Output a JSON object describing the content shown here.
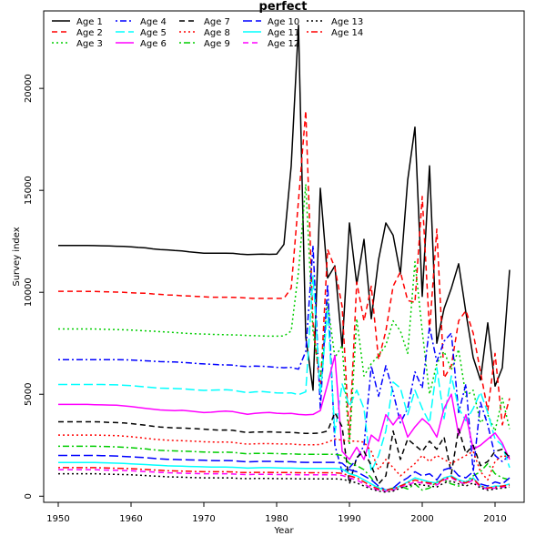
{
  "chart_data": {
    "type": "line",
    "title": "perfect",
    "xlabel": "Year",
    "ylabel": "Survey index",
    "xlim": [
      1948,
      2014
    ],
    "ylim": [
      -300,
      23800
    ],
    "xticks": [
      1950,
      1960,
      1970,
      1980,
      1990,
      2000,
      2010
    ],
    "yticks": [
      0,
      5000,
      10000,
      15000,
      20000
    ],
    "grid": false,
    "legend_position": "top-left",
    "years": [
      1950,
      1951,
      1952,
      1953,
      1954,
      1955,
      1956,
      1957,
      1958,
      1959,
      1960,
      1961,
      1962,
      1963,
      1964,
      1965,
      1966,
      1967,
      1968,
      1969,
      1970,
      1971,
      1972,
      1973,
      1974,
      1975,
      1976,
      1977,
      1978,
      1979,
      1980,
      1981,
      1982,
      1983,
      1984,
      1985,
      1986,
      1987,
      1988,
      1989,
      1990,
      1991,
      1992,
      1993,
      1994,
      1995,
      1996,
      1997,
      1998,
      1999,
      2000,
      2001,
      2002,
      2003,
      2004,
      2005,
      2006,
      2007,
      2008,
      2009,
      2010,
      2011,
      2012
    ],
    "series": [
      {
        "name": "Age 1",
        "color": "#000000",
        "dash": "solid",
        "values": [
          12300,
          12300,
          12300,
          12300,
          12300,
          12290,
          12280,
          12270,
          12260,
          12250,
          12230,
          12200,
          12180,
          12130,
          12100,
          12080,
          12050,
          12030,
          11980,
          11950,
          11920,
          11920,
          11920,
          11920,
          11910,
          11870,
          11850,
          11860,
          11870,
          11860,
          11870,
          12350,
          16200,
          23100,
          7800,
          5200,
          15100,
          10700,
          11300,
          7300,
          13400,
          10400,
          12600,
          8700,
          11600,
          13400,
          12800,
          10900,
          15500,
          18100,
          9800,
          16200,
          7500,
          9200,
          10200,
          11400,
          9000,
          6800,
          5700,
          8500,
          5400,
          6300,
          11100
        ]
      },
      {
        "name": "Age 2",
        "color": "#ff0000",
        "dash": "dashed",
        "values": [
          10050,
          10050,
          10050,
          10050,
          10040,
          10040,
          10030,
          10020,
          10010,
          10000,
          9980,
          9960,
          9950,
          9920,
          9900,
          9870,
          9860,
          9830,
          9820,
          9800,
          9780,
          9760,
          9760,
          9760,
          9750,
          9740,
          9720,
          9700,
          9700,
          9700,
          9700,
          9700,
          10200,
          14500,
          18900,
          8500,
          5200,
          12100,
          11200,
          9300,
          2800,
          10500,
          8600,
          10300,
          6700,
          8100,
          10300,
          11000,
          9600,
          9500,
          14700,
          8100,
          13100,
          5800,
          6400,
          8600,
          9100,
          8000,
          6100,
          4200,
          7000,
          3500,
          4800
        ]
      },
      {
        "name": "Age 3",
        "color": "#00cd00",
        "dash": "dotted",
        "values": [
          8200,
          8200,
          8200,
          8200,
          8200,
          8200,
          8190,
          8180,
          8170,
          8160,
          8150,
          8130,
          8110,
          8090,
          8070,
          8050,
          8030,
          8000,
          7980,
          7960,
          7950,
          7940,
          7930,
          7920,
          7910,
          7900,
          7880,
          7870,
          7860,
          7850,
          7850,
          7860,
          8100,
          11000,
          15300,
          8000,
          5800,
          9500,
          6800,
          7400,
          2500,
          8700,
          5900,
          6500,
          6900,
          7400,
          8600,
          8100,
          7000,
          11500,
          8100,
          5000,
          6500,
          7100,
          6200,
          7200,
          4900,
          5200,
          3600,
          4000,
          3200,
          4800,
          3300
        ]
      },
      {
        "name": "Age 4",
        "color": "#0000ff",
        "dash": "dotdash",
        "values": [
          6700,
          6700,
          6700,
          6700,
          6700,
          6700,
          6700,
          6700,
          6700,
          6690,
          6680,
          6660,
          6640,
          6620,
          6600,
          6590,
          6580,
          6560,
          6540,
          6510,
          6490,
          6470,
          6450,
          6440,
          6430,
          6380,
          6360,
          6380,
          6370,
          6350,
          6320,
          6300,
          6320,
          6230,
          7100,
          12300,
          4300,
          10400,
          2500,
          1200,
          1400,
          1800,
          2500,
          6400,
          4900,
          6400,
          5100,
          3600,
          4300,
          6100,
          5300,
          8300,
          6600,
          7600,
          8000,
          4100,
          5500,
          1200,
          4600,
          3500,
          2000,
          1700,
          2000
        ]
      },
      {
        "name": "Age 5",
        "color": "#00ffff",
        "dash": "longdash",
        "values": [
          5480,
          5480,
          5480,
          5480,
          5480,
          5480,
          5480,
          5470,
          5460,
          5440,
          5420,
          5390,
          5360,
          5330,
          5300,
          5290,
          5280,
          5270,
          5240,
          5210,
          5190,
          5200,
          5210,
          5220,
          5200,
          5130,
          5080,
          5120,
          5130,
          5100,
          5070,
          5060,
          5070,
          4980,
          5120,
          10800,
          5000,
          9100,
          3100,
          5500,
          4400,
          5200,
          4300,
          1200,
          2000,
          3200,
          5600,
          5300,
          4000,
          5200,
          4300,
          3600,
          6300,
          3800,
          5900,
          4300,
          3700,
          4300,
          5100,
          4100,
          2800,
          2500,
          1400
        ]
      },
      {
        "name": "Age 6",
        "color": "#ff00ff",
        "dash": "solid",
        "values": [
          4500,
          4500,
          4500,
          4500,
          4500,
          4490,
          4480,
          4470,
          4460,
          4430,
          4400,
          4350,
          4310,
          4270,
          4230,
          4210,
          4200,
          4210,
          4180,
          4140,
          4100,
          4120,
          4150,
          4170,
          4150,
          4080,
          4020,
          4060,
          4090,
          4110,
          4070,
          4050,
          4060,
          4010,
          3990,
          4010,
          4200,
          5500,
          6900,
          2200,
          1800,
          2400,
          1800,
          3000,
          2700,
          4000,
          3500,
          4000,
          2900,
          3400,
          3800,
          3500,
          2900,
          4300,
          5000,
          3000,
          4000,
          2300,
          2500,
          2800,
          3100,
          2600,
          1800
        ]
      },
      {
        "name": "Age 7",
        "color": "#000000",
        "dash": "dashed",
        "values": [
          3650,
          3650,
          3650,
          3650,
          3650,
          3650,
          3640,
          3620,
          3610,
          3590,
          3560,
          3520,
          3480,
          3430,
          3390,
          3370,
          3350,
          3340,
          3330,
          3310,
          3290,
          3260,
          3240,
          3250,
          3230,
          3170,
          3120,
          3150,
          3150,
          3160,
          3140,
          3130,
          3130,
          3100,
          3080,
          3080,
          3100,
          3200,
          4100,
          3400,
          600,
          1900,
          2200,
          1500,
          600,
          1000,
          3200,
          1800,
          2800,
          2500,
          2200,
          2700,
          2300,
          2900,
          1100,
          3300,
          2100,
          2500,
          1500,
          1700,
          2200,
          2300,
          1900
        ]
      },
      {
        "name": "Age 8",
        "color": "#ff0000",
        "dash": "dotted",
        "values": [
          3000,
          3000,
          3000,
          3000,
          3000,
          3000,
          2990,
          2980,
          2970,
          2950,
          2920,
          2880,
          2840,
          2800,
          2770,
          2750,
          2730,
          2720,
          2710,
          2690,
          2670,
          2660,
          2650,
          2660,
          2640,
          2590,
          2550,
          2570,
          2580,
          2580,
          2570,
          2560,
          2560,
          2530,
          2520,
          2520,
          2540,
          2650,
          2800,
          2750,
          2700,
          2700,
          2650,
          2200,
          1300,
          1800,
          1400,
          1000,
          1300,
          1600,
          2000,
          1700,
          2000,
          1800,
          1600,
          1800,
          2000,
          2200,
          1200,
          800,
          1700,
          2000,
          1900
        ]
      },
      {
        "name": "Age 9",
        "color": "#00cd00",
        "dash": "dotdash",
        "values": [
          2450,
          2450,
          2450,
          2450,
          2450,
          2450,
          2440,
          2430,
          2420,
          2400,
          2380,
          2350,
          2320,
          2280,
          2250,
          2230,
          2220,
          2210,
          2200,
          2180,
          2170,
          2160,
          2150,
          2160,
          2150,
          2110,
          2080,
          2100,
          2100,
          2100,
          2090,
          2080,
          2080,
          2060,
          2050,
          2050,
          2050,
          2050,
          2050,
          2000,
          1600,
          1500,
          1300,
          900,
          400,
          300,
          400,
          500,
          350,
          600,
          300,
          400,
          700,
          800,
          600,
          500,
          700,
          1000,
          1200,
          1600,
          1100,
          900,
          800
        ]
      },
      {
        "name": "Age 10",
        "color": "#0000ff",
        "dash": "longdash",
        "values": [
          2000,
          2000,
          2000,
          2000,
          2000,
          2000,
          1990,
          1980,
          1970,
          1950,
          1930,
          1910,
          1890,
          1860,
          1830,
          1810,
          1800,
          1790,
          1780,
          1770,
          1760,
          1750,
          1740,
          1750,
          1740,
          1710,
          1680,
          1700,
          1710,
          1710,
          1700,
          1690,
          1690,
          1670,
          1660,
          1660,
          1660,
          1660,
          1660,
          1620,
          1300,
          1200,
          1000,
          800,
          500,
          300,
          400,
          700,
          900,
          1200,
          1000,
          1100,
          800,
          1300,
          1400,
          1000,
          900,
          1200,
          600,
          500,
          700,
          600,
          900
        ]
      },
      {
        "name": "Age 11",
        "color": "#00ffff",
        "dash": "solid",
        "values": [
          1650,
          1650,
          1650,
          1650,
          1650,
          1650,
          1640,
          1630,
          1620,
          1610,
          1590,
          1570,
          1550,
          1530,
          1510,
          1490,
          1480,
          1470,
          1460,
          1450,
          1440,
          1430,
          1430,
          1430,
          1420,
          1400,
          1380,
          1390,
          1400,
          1400,
          1390,
          1380,
          1380,
          1370,
          1360,
          1360,
          1360,
          1360,
          1360,
          1330,
          1100,
          1000,
          800,
          600,
          400,
          300,
          350,
          500,
          700,
          900,
          800,
          700,
          650,
          900,
          1000,
          800,
          700,
          900,
          500,
          400,
          500,
          500,
          600
        ]
      },
      {
        "name": "Age 12",
        "color": "#ff00ff",
        "dash": "dashed",
        "values": [
          1300,
          1300,
          1300,
          1300,
          1300,
          1300,
          1290,
          1280,
          1270,
          1260,
          1250,
          1230,
          1210,
          1190,
          1170,
          1150,
          1140,
          1130,
          1120,
          1110,
          1100,
          1100,
          1100,
          1100,
          1090,
          1070,
          1060,
          1070,
          1070,
          1070,
          1060,
          1060,
          1060,
          1050,
          1050,
          1050,
          1050,
          1050,
          1050,
          1020,
          900,
          800,
          600,
          400,
          300,
          250,
          300,
          450,
          550,
          700,
          650,
          600,
          550,
          800,
          900,
          700,
          600,
          800,
          450,
          350,
          400,
          450,
          500
        ]
      },
      {
        "name": "Age 13",
        "color": "#000000",
        "dash": "dotted",
        "values": [
          1100,
          1100,
          1100,
          1100,
          1100,
          1100,
          1090,
          1080,
          1070,
          1060,
          1050,
          1030,
          1010,
          990,
          970,
          950,
          940,
          930,
          920,
          910,
          900,
          900,
          900,
          900,
          890,
          870,
          860,
          870,
          870,
          870,
          860,
          860,
          860,
          850,
          850,
          850,
          850,
          850,
          850,
          830,
          750,
          650,
          500,
          350,
          250,
          200,
          250,
          400,
          500,
          600,
          550,
          500,
          450,
          650,
          750,
          600,
          500,
          650,
          400,
          300,
          350,
          400,
          450
        ]
      },
      {
        "name": "Age 14",
        "color": "#ff0000",
        "dash": "dotdash",
        "values": [
          1400,
          1400,
          1400,
          1400,
          1400,
          1400,
          1390,
          1380,
          1370,
          1360,
          1350,
          1330,
          1310,
          1290,
          1270,
          1250,
          1240,
          1230,
          1220,
          1210,
          1200,
          1200,
          1200,
          1200,
          1190,
          1170,
          1160,
          1170,
          1170,
          1170,
          1160,
          1160,
          1160,
          1150,
          1150,
          1150,
          1150,
          1150,
          1150,
          1120,
          1000,
          900,
          700,
          500,
          350,
          300,
          350,
          500,
          650,
          800,
          700,
          650,
          600,
          850,
          950,
          750,
          650,
          850,
          500,
          400,
          450,
          500,
          550
        ]
      }
    ]
  }
}
